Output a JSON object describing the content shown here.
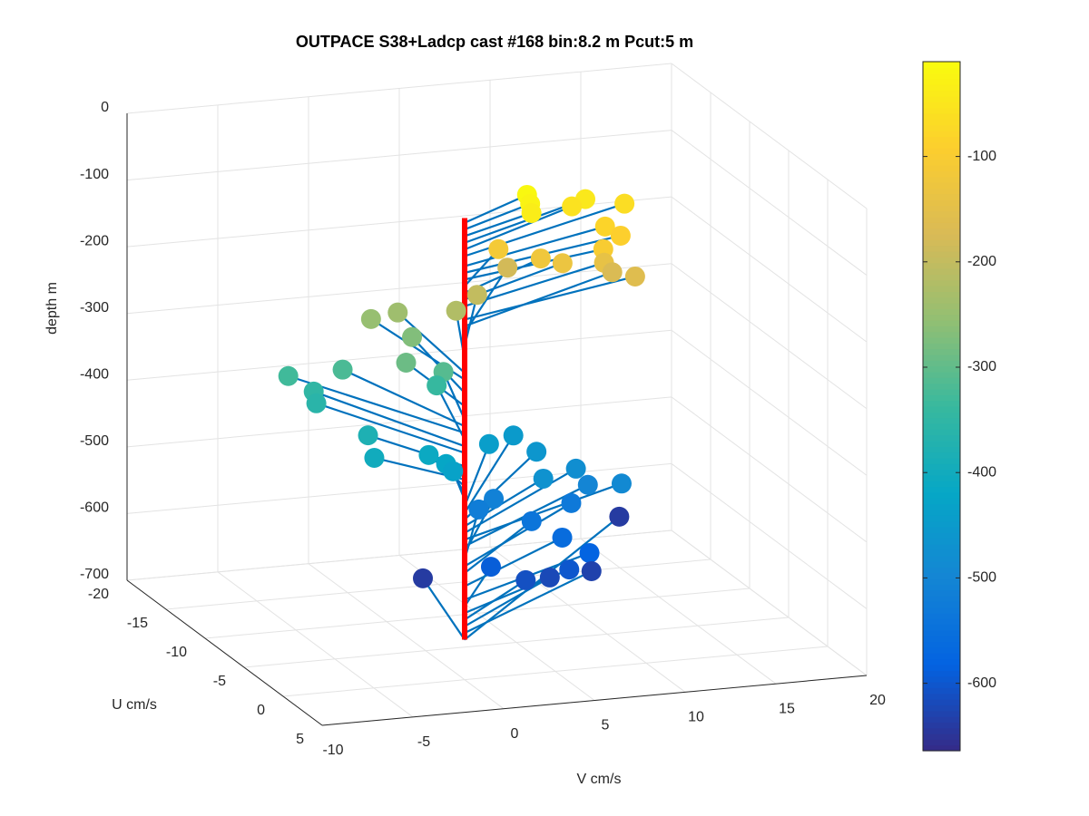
{
  "chart_data": {
    "type": "scatter3d",
    "title": "OUTPACE S38+Ladcp cast #168 bin:8.2 m  Pcut:5 m",
    "xlabel": "V cm/s",
    "ylabel": "U cm/s",
    "zlabel": "depth m",
    "xlim": [
      -10,
      20
    ],
    "xticks": [
      -10,
      -5,
      0,
      5,
      10,
      15,
      20
    ],
    "ylim": [
      -20,
      5
    ],
    "yticks": [
      -20,
      -15,
      -10,
      -5,
      0,
      5
    ],
    "zlim": [
      -700,
      0
    ],
    "zticks": [
      -700,
      -600,
      -500,
      -400,
      -300,
      -200,
      -100,
      0
    ],
    "grid": true,
    "x": [
      4.9,
      4.9,
      4.8,
      8.8,
      8.1,
      11.3,
      9.5,
      10.1,
      8.8,
      4.1,
      6.0,
      7.2,
      9.7,
      11.2,
      10.8,
      6.4,
      4.0,
      2.8,
      0.7,
      -0.6,
      1.1,
      0.0,
      2.1,
      -2.25,
      -4.9,
      2.2,
      -3.8,
      -4.0,
      -2.7,
      -3.0,
      0.3,
      1.0,
      1.3,
      5.3,
      7.5,
      8.0,
      7.0,
      9.7,
      11.4,
      10.1,
      5.0,
      4.0,
      9.4,
      6.7,
      15.7,
      8.0,
      9.2,
      3.9,
      8.0,
      5.6,
      7.4,
      10.3,
      2.0
    ],
    "y": [
      -3.4,
      -3.0,
      -2.6,
      -5.0,
      -5.1,
      -5.8,
      -4.1,
      -3.5,
      -2.7,
      -5.2,
      -4.2,
      -4.2,
      -4.7,
      -4.2,
      -6.2,
      -9.4,
      -7.7,
      -7.6,
      -10.2,
      -10.6,
      -9.3,
      -7.5,
      -7.6,
      -10.4,
      -11.2,
      -8.7,
      -10.5,
      -9.7,
      -6.1,
      -4.6,
      -5.3,
      -4.7,
      -4.5,
      -9.2,
      -11.2,
      -9.4,
      -6.2,
      -8.3,
      -6.4,
      -7.7,
      -7.9,
      -7.5,
      -8.2,
      -7.0,
      -16.7,
      -6.1,
      -5.4,
      -5.7,
      -5.2,
      -5.2,
      -6.3,
      -7.7,
      -10.0
    ],
    "z": [
      -15,
      -25,
      -35,
      -45,
      -55,
      -65,
      -80,
      -90,
      -100,
      -110,
      -120,
      -130,
      -140,
      -160,
      -170,
      -180,
      -200,
      -220,
      -240,
      -250,
      -270,
      -290,
      -310,
      -320,
      -330,
      -340,
      -350,
      -360,
      -380,
      -400,
      -410,
      -420,
      -430,
      -440,
      -450,
      -460,
      -470,
      -480,
      -490,
      -500,
      -510,
      -520,
      -530,
      -540,
      -640,
      -560,
      -580,
      -590,
      -600,
      -610,
      -620,
      -630,
      -640
    ],
    "line_color": "#0072bd",
    "stem": {
      "x": 0,
      "y": 0,
      "z": [
        -8,
        -640
      ],
      "color": "#ff0000"
    },
    "clim": [
      -664,
      -10
    ],
    "colorbar_ticks": [
      -600,
      -500,
      -400,
      -300,
      -200,
      -100
    ],
    "colormap": [
      "#352a87",
      "#0363e1",
      "#1485d4",
      "#06a7c6",
      "#38b99e",
      "#92bf73",
      "#d9ba56",
      "#fcce2e",
      "#f9fb0e"
    ]
  }
}
